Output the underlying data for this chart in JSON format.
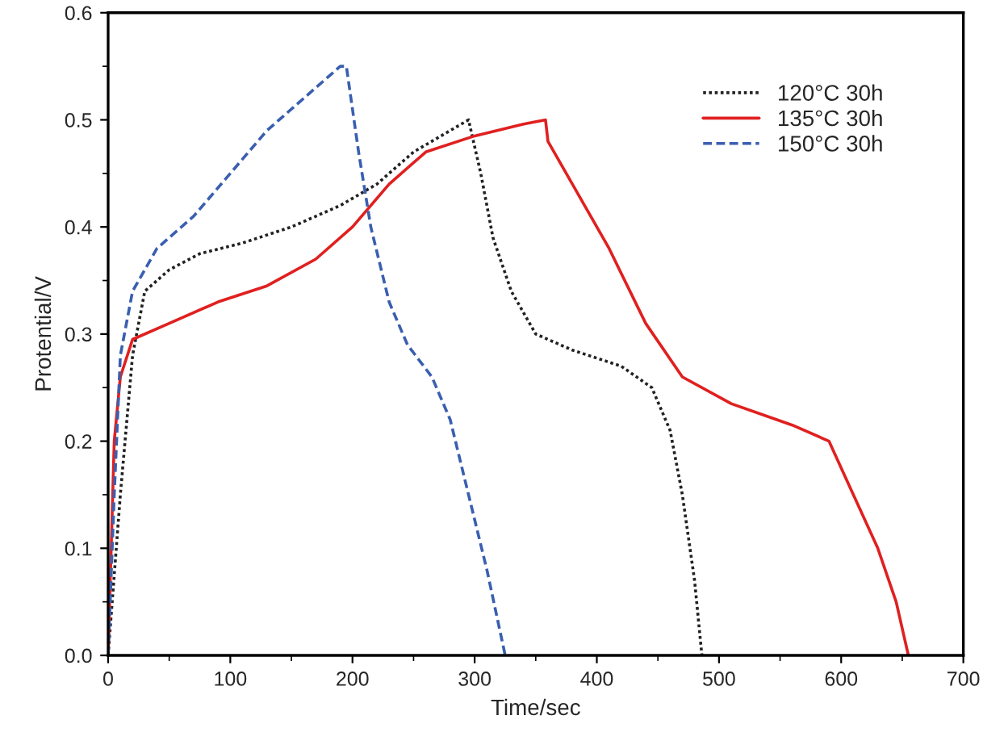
{
  "chart_data": {
    "type": "line",
    "xlabel": "Time/sec",
    "ylabel": "Protential/V",
    "xlim": [
      0,
      700
    ],
    "xticks": [
      0,
      100,
      200,
      300,
      400,
      500,
      600,
      700
    ],
    "ylim": [
      0,
      0.6
    ],
    "yticks": [
      {
        "value": 0,
        "label": "0.0"
      },
      0.1,
      0.2,
      0.3,
      0.4,
      0.5,
      0.6
    ],
    "grid": false,
    "legend": "top right",
    "marker": "none",
    "series": [
      {
        "name": "120°C 30h",
        "color": "#222222",
        "line_style": "dotted",
        "x": [
          0,
          10,
          20,
          30,
          50,
          75,
          110,
          150,
          190,
          220,
          250,
          280,
          295,
          305,
          315,
          330,
          350,
          380,
          420,
          445,
          460,
          470,
          480,
          486
        ],
        "values": [
          0,
          0.15,
          0.28,
          0.34,
          0.36,
          0.375,
          0.385,
          0.4,
          0.42,
          0.44,
          0.47,
          0.49,
          0.5,
          0.45,
          0.39,
          0.34,
          0.3,
          0.285,
          0.27,
          0.25,
          0.21,
          0.15,
          0.07,
          0
        ]
      },
      {
        "name": "135°C 30h",
        "color": "#e02020",
        "line_style": "solid",
        "x": [
          0,
          5,
          10,
          20,
          50,
          90,
          130,
          170,
          200,
          230,
          260,
          300,
          340,
          358,
          360,
          380,
          410,
          440,
          470,
          510,
          560,
          590,
          610,
          630,
          645,
          655
        ],
        "values": [
          0,
          0.2,
          0.26,
          0.295,
          0.31,
          0.33,
          0.345,
          0.37,
          0.4,
          0.44,
          0.47,
          0.485,
          0.496,
          0.5,
          0.48,
          0.44,
          0.38,
          0.31,
          0.26,
          0.235,
          0.215,
          0.2,
          0.15,
          0.1,
          0.05,
          0
        ]
      },
      {
        "name": "150°C 30h",
        "color": "#3a5fb0",
        "line_style": "dashed",
        "x": [
          0,
          5,
          10,
          20,
          40,
          70,
          100,
          130,
          160,
          190,
          195,
          205,
          215,
          230,
          245,
          265,
          280,
          295,
          310,
          325
        ],
        "values": [
          0,
          0.15,
          0.28,
          0.34,
          0.38,
          0.41,
          0.45,
          0.49,
          0.52,
          0.55,
          0.55,
          0.47,
          0.4,
          0.33,
          0.29,
          0.26,
          0.22,
          0.15,
          0.08,
          0
        ]
      }
    ]
  }
}
